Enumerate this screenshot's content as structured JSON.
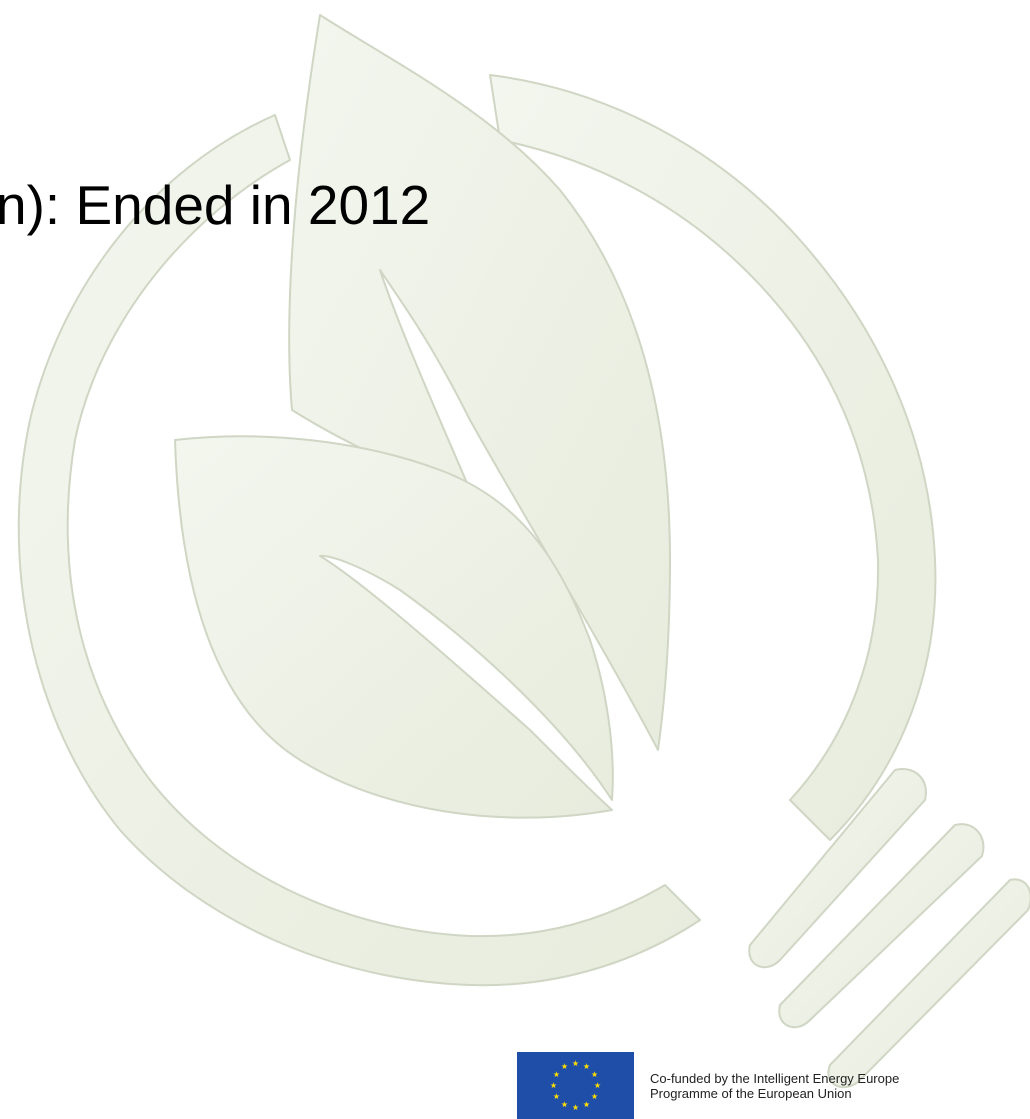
{
  "slide": {
    "headline": "n): Ended in 2012"
  },
  "footer": {
    "cofund_line1": "Co-funded by the Intelligent Energy Europe",
    "cofund_line2": "Programme of the European Union"
  },
  "colors": {
    "watermark_fill": "#eef2e6",
    "watermark_stroke": "#cfd6c4",
    "eu_blue": "#1f4ea8",
    "eu_star": "#ffdd00"
  },
  "icons": {
    "watermark": "lightbulb-leaves-icon",
    "flag": "eu-flag-icon"
  }
}
